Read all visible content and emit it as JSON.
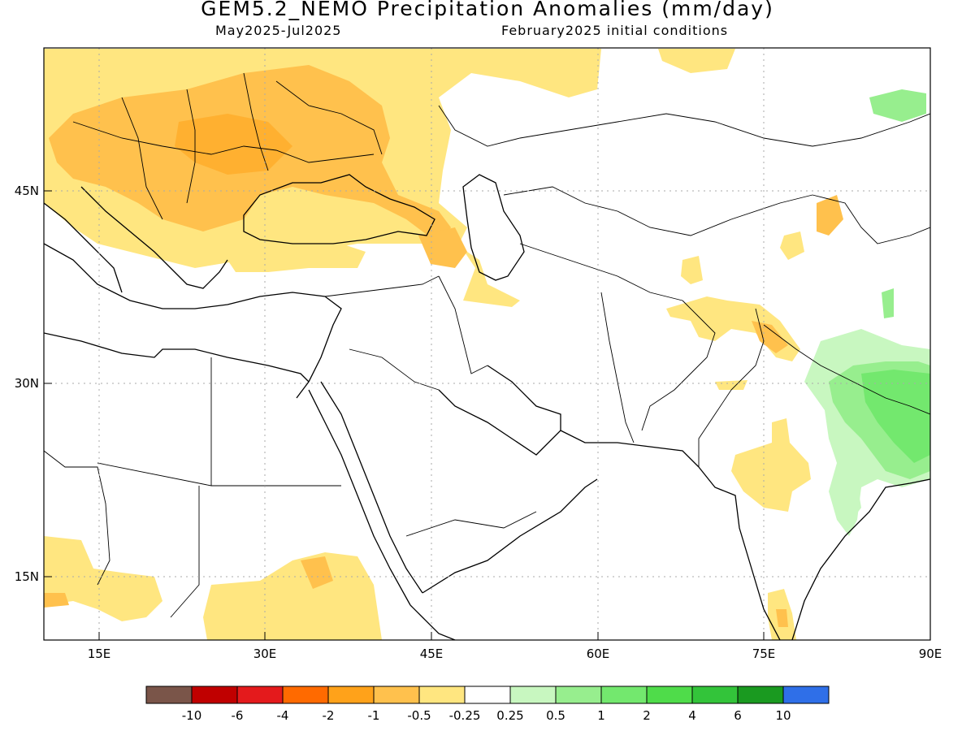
{
  "header": {
    "title": "GEM5.2_NEMO Precipitation Anomalies (mm/day)",
    "period": "May2025-Jul2025",
    "init": "February2025 initial conditions"
  },
  "axes": {
    "lat_labels": [
      {
        "value": 45,
        "text": "45N"
      },
      {
        "value": 30,
        "text": "30N"
      },
      {
        "value": 15,
        "text": "15N"
      }
    ],
    "lon_labels": [
      {
        "value": 15,
        "text": "15E"
      },
      {
        "value": 30,
        "text": "30E"
      },
      {
        "value": 45,
        "text": "45E"
      },
      {
        "value": 60,
        "text": "60E"
      },
      {
        "value": 75,
        "text": "75E"
      },
      {
        "value": 90,
        "text": "90E"
      }
    ],
    "lon_range": [
      10,
      90
    ],
    "lat_range": [
      10,
      56
    ]
  },
  "legend": {
    "colors": [
      "#7a5549",
      "#c00000",
      "#e41a1c",
      "#ff6a00",
      "#ffa21a",
      "#ffc14d",
      "#ffe680",
      "#ffffff",
      "#c8f7c0",
      "#97ee8e",
      "#73e86e",
      "#4fdc4a",
      "#33c43a",
      "#1a9a20",
      "#2f6fe8"
    ],
    "labels": [
      "-10",
      "-6",
      "-4",
      "-2",
      "-1",
      "-0.5",
      "-0.25",
      "0.25",
      "0.5",
      "1",
      "2",
      "4",
      "6",
      "10"
    ]
  }
}
